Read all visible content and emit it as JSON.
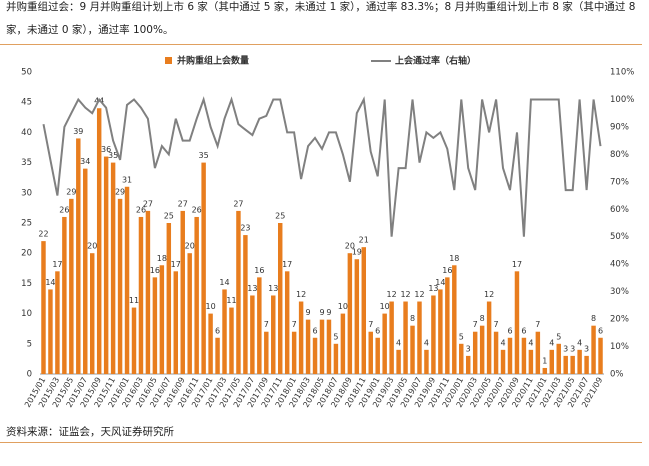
{
  "header": {
    "note": "并购重组过会：9 月并购重组计划上市 6 家（其中通过 5 家，未通过 1 家），通过率 83.3%；8 月并购重组计划上市 8 家（其中通过 8 家，未通过 0 家），通过率 100%。"
  },
  "footer": {
    "source": "资料来源：证监会，天风证券研究所"
  },
  "chart_data": {
    "type": "bar-line",
    "categories": [
      "2015/01",
      null,
      "2015/03",
      null,
      "2015/05",
      null,
      "2015/07",
      null,
      "2015/09",
      null,
      "2015/11",
      null,
      "2016/01",
      null,
      "2016/03",
      null,
      "2016/05",
      null,
      "2016/07",
      null,
      "2016/09",
      null,
      "2016/11",
      null,
      "2017/01",
      null,
      "2017/03",
      null,
      "2017/05",
      null,
      "2017/07",
      null,
      "2017/09",
      null,
      "2017/11",
      null,
      "2018/01",
      null,
      "2018/03",
      null,
      "2018/05",
      null,
      "2018/07",
      null,
      "2018/09",
      null,
      "2018/11",
      null,
      "2019/01",
      null,
      "2019/03",
      null,
      "2019/05",
      null,
      "2019/07",
      null,
      "2019/09",
      null,
      "2019/11",
      null,
      "2020/01",
      null,
      "2020/03",
      null,
      "2020/05",
      null,
      "2020/07",
      null,
      "2020/09",
      null,
      "2020/11",
      null,
      "2021/01",
      null,
      "2021/03",
      null,
      "2021/05",
      null,
      "2021/07",
      null,
      "2021/09"
    ],
    "series": [
      {
        "name": "并购重组上会数量",
        "color": "#e87d1e",
        "type": "bar",
        "values": [
          22,
          14,
          17,
          26,
          29,
          39,
          34,
          20,
          44,
          36,
          35,
          29,
          31,
          11,
          26,
          27,
          16,
          18,
          25,
          17,
          27,
          20,
          26,
          35,
          10,
          6,
          14,
          11,
          27,
          23,
          13,
          16,
          7,
          13,
          25,
          17,
          7,
          12,
          9,
          6,
          9,
          9,
          5,
          10,
          20,
          19,
          21,
          7,
          6,
          10,
          12,
          4,
          12,
          8,
          12,
          4,
          13,
          14,
          16,
          18,
          5,
          3,
          7,
          8,
          12,
          7,
          4,
          6,
          17,
          6,
          4,
          7,
          1,
          4,
          5,
          3,
          3,
          4,
          3,
          8,
          6
        ]
      },
      {
        "name": "上会通过率（右轴）",
        "color": "#808080",
        "type": "line",
        "axis": "y2",
        "values": [
          91,
          78,
          65,
          90,
          95,
          100,
          97,
          95,
          100,
          97,
          85,
          78,
          98,
          100,
          97,
          93,
          75,
          83,
          80,
          93,
          85,
          85,
          93,
          100,
          90,
          83,
          93,
          100,
          91,
          89,
          87,
          93,
          94,
          100,
          100,
          88,
          88,
          71,
          83,
          86,
          82,
          88,
          88,
          80,
          70,
          95,
          100,
          81,
          72,
          100,
          50,
          75,
          75,
          100,
          77,
          88,
          86,
          88,
          82,
          67,
          100,
          75,
          67,
          100,
          88,
          100,
          75,
          67,
          88,
          50,
          100,
          100,
          100,
          100,
          100,
          67,
          67,
          100,
          67,
          100,
          83
        ]
      }
    ],
    "ylim": [
      0,
      50
    ],
    "yticks": [
      0,
      5,
      10,
      15,
      20,
      25,
      30,
      35,
      40,
      45,
      50
    ],
    "y2lim": [
      0,
      110
    ],
    "y2ticks": [
      {
        "value": 0,
        "label": "0%"
      },
      {
        "value": 10,
        "label": "10%"
      },
      {
        "value": 20,
        "label": "20%"
      },
      {
        "value": 30,
        "label": "30%"
      },
      {
        "value": 40,
        "label": "40%"
      },
      {
        "value": 50,
        "label": "50%"
      },
      {
        "value": 60,
        "label": "60%"
      },
      {
        "value": 70,
        "label": "70%"
      },
      {
        "value": 80,
        "label": "80%"
      },
      {
        "value": 90,
        "label": "90%"
      },
      {
        "value": 100,
        "label": "100%"
      },
      {
        "value": 110,
        "label": "110%"
      }
    ],
    "legend": "top"
  }
}
